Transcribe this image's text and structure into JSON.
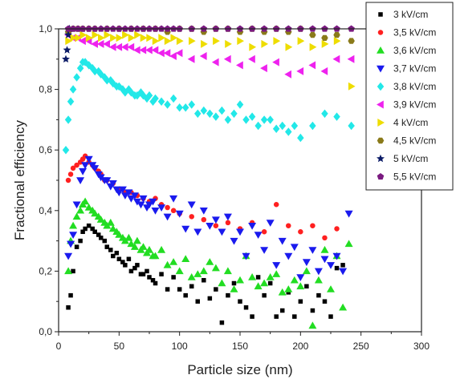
{
  "chart_data": {
    "type": "scatter",
    "xlabel": "Particle size (nm)",
    "ylabel": "Fractional efficiency",
    "xlim": [
      0,
      300
    ],
    "ylim": [
      0,
      1.0
    ],
    "xticks": [
      "0",
      "50",
      "100",
      "150",
      "200",
      "250",
      "300"
    ],
    "yticks": [
      "0,0",
      "0,2",
      "0,4",
      "0,6",
      "0,8",
      "1,0"
    ],
    "grid": false,
    "legend_position": "top-right",
    "series": [
      {
        "name": "3 kV/cm",
        "color": "#000000",
        "marker": "square",
        "x": [
          8,
          10,
          12,
          15,
          18,
          20,
          22,
          25,
          28,
          30,
          33,
          35,
          38,
          40,
          43,
          45,
          48,
          50,
          53,
          55,
          58,
          60,
          63,
          65,
          68,
          70,
          73,
          75,
          78,
          80,
          85,
          90,
          95,
          100,
          105,
          110,
          115,
          120,
          125,
          130,
          135,
          140,
          145,
          150,
          155,
          160,
          165,
          170,
          175,
          180,
          185,
          190,
          195,
          200,
          205,
          210,
          215,
          220,
          225,
          230,
          235
        ],
        "y": [
          0.08,
          0.12,
          0.2,
          0.28,
          0.3,
          0.33,
          0.34,
          0.35,
          0.34,
          0.33,
          0.32,
          0.31,
          0.3,
          0.28,
          0.27,
          0.25,
          0.26,
          0.24,
          0.23,
          0.22,
          0.24,
          0.2,
          0.21,
          0.22,
          0.19,
          0.19,
          0.2,
          0.18,
          0.17,
          0.16,
          0.19,
          0.14,
          0.18,
          0.14,
          0.12,
          0.15,
          0.1,
          0.17,
          0.11,
          0.14,
          0.03,
          0.12,
          0.16,
          0.1,
          0.08,
          0.05,
          0.18,
          0.12,
          0.16,
          0.05,
          0.07,
          0.13,
          0.05,
          0.1,
          0.15,
          0.07,
          0.12,
          0.1,
          0.05,
          0.21,
          0.22
        ]
      },
      {
        "name": "3,5 kV/cm",
        "color": "#ff2020",
        "marker": "circle",
        "x": [
          8,
          10,
          12,
          15,
          18,
          20,
          22,
          25,
          28,
          30,
          33,
          35,
          38,
          40,
          45,
          50,
          55,
          60,
          65,
          70,
          75,
          80,
          85,
          90,
          95,
          100,
          110,
          120,
          130,
          140,
          150,
          160,
          170,
          180,
          190,
          200,
          210,
          220,
          230
        ],
        "y": [
          0.5,
          0.52,
          0.54,
          0.55,
          0.56,
          0.57,
          0.58,
          0.56,
          0.55,
          0.54,
          0.53,
          0.52,
          0.5,
          0.5,
          0.49,
          0.47,
          0.46,
          0.46,
          0.45,
          0.44,
          0.43,
          0.44,
          0.42,
          0.41,
          0.4,
          0.39,
          0.38,
          0.37,
          0.35,
          0.36,
          0.34,
          0.36,
          0.33,
          0.42,
          0.35,
          0.33,
          0.35,
          0.31,
          0.34
        ]
      },
      {
        "name": "3,6 kV/cm",
        "color": "#22dd22",
        "marker": "triangle-up",
        "x": [
          8,
          10,
          12,
          15,
          18,
          20,
          22,
          25,
          28,
          30,
          33,
          35,
          38,
          40,
          43,
          45,
          48,
          50,
          53,
          55,
          58,
          60,
          63,
          65,
          68,
          70,
          73,
          75,
          78,
          80,
          85,
          90,
          95,
          100,
          105,
          110,
          115,
          120,
          125,
          130,
          135,
          140,
          145,
          150,
          155,
          160,
          165,
          170,
          175,
          180,
          185,
          190,
          195,
          200,
          205,
          210,
          215,
          220,
          225,
          230,
          235,
          240
        ],
        "y": [
          0.2,
          0.3,
          0.35,
          0.38,
          0.4,
          0.42,
          0.43,
          0.41,
          0.4,
          0.39,
          0.38,
          0.37,
          0.36,
          0.35,
          0.36,
          0.34,
          0.33,
          0.32,
          0.31,
          0.3,
          0.31,
          0.29,
          0.28,
          0.3,
          0.27,
          0.28,
          0.26,
          0.27,
          0.25,
          0.25,
          0.27,
          0.22,
          0.23,
          0.2,
          0.24,
          0.18,
          0.19,
          0.2,
          0.23,
          0.21,
          0.16,
          0.2,
          0.14,
          0.17,
          0.25,
          0.18,
          0.15,
          0.16,
          0.18,
          0.19,
          0.13,
          0.14,
          0.17,
          0.15,
          0.2,
          0.02,
          0.17,
          0.27,
          0.14,
          0.25,
          0.08,
          0.29
        ]
      },
      {
        "name": "3,7 kV/cm",
        "color": "#1a1aee",
        "marker": "triangle-down",
        "x": [
          8,
          10,
          12,
          15,
          18,
          20,
          22,
          25,
          28,
          30,
          33,
          35,
          38,
          40,
          43,
          45,
          48,
          50,
          53,
          55,
          58,
          60,
          63,
          65,
          68,
          70,
          73,
          75,
          78,
          80,
          85,
          90,
          95,
          100,
          105,
          110,
          115,
          120,
          125,
          130,
          135,
          140,
          145,
          150,
          155,
          160,
          165,
          170,
          175,
          180,
          185,
          190,
          195,
          200,
          205,
          210,
          215,
          220,
          225,
          230,
          235,
          240
        ],
        "y": [
          0.25,
          0.29,
          0.32,
          0.42,
          0.5,
          0.53,
          0.55,
          0.57,
          0.55,
          0.54,
          0.52,
          0.51,
          0.5,
          0.5,
          0.48,
          0.49,
          0.47,
          0.46,
          0.47,
          0.45,
          0.46,
          0.44,
          0.45,
          0.43,
          0.42,
          0.44,
          0.41,
          0.42,
          0.43,
          0.4,
          0.41,
          0.38,
          0.44,
          0.39,
          0.34,
          0.42,
          0.33,
          0.4,
          0.35,
          0.37,
          0.33,
          0.38,
          0.3,
          0.33,
          0.25,
          0.35,
          0.32,
          0.27,
          0.36,
          0.22,
          0.3,
          0.25,
          0.28,
          0.18,
          0.23,
          0.27,
          0.2,
          0.24,
          0.22,
          0.25,
          0.2,
          0.39
        ]
      },
      {
        "name": "3,8 kV/cm",
        "color": "#22e8e8",
        "marker": "diamond",
        "x": [
          6,
          8,
          10,
          12,
          15,
          18,
          20,
          22,
          25,
          28,
          30,
          33,
          35,
          38,
          40,
          43,
          45,
          48,
          50,
          53,
          55,
          58,
          60,
          63,
          65,
          68,
          70,
          73,
          75,
          78,
          80,
          85,
          90,
          95,
          100,
          105,
          110,
          115,
          120,
          125,
          130,
          135,
          140,
          145,
          150,
          155,
          160,
          165,
          170,
          175,
          180,
          185,
          190,
          195,
          200,
          210,
          220,
          230,
          242
        ],
        "y": [
          0.6,
          0.7,
          0.76,
          0.8,
          0.84,
          0.87,
          0.89,
          0.89,
          0.88,
          0.87,
          0.86,
          0.86,
          0.85,
          0.84,
          0.83,
          0.83,
          0.82,
          0.81,
          0.81,
          0.8,
          0.79,
          0.8,
          0.79,
          0.78,
          0.78,
          0.79,
          0.78,
          0.77,
          0.78,
          0.76,
          0.77,
          0.76,
          0.75,
          0.77,
          0.74,
          0.74,
          0.75,
          0.72,
          0.73,
          0.72,
          0.71,
          0.73,
          0.7,
          0.72,
          0.75,
          0.7,
          0.71,
          0.68,
          0.7,
          0.7,
          0.67,
          0.68,
          0.66,
          0.68,
          0.64,
          0.68,
          0.72,
          0.71,
          0.68
        ]
      },
      {
        "name": "3,9 kV/cm",
        "color": "#ee22ee",
        "marker": "triangle-left",
        "x": [
          8,
          12,
          16,
          20,
          25,
          30,
          35,
          40,
          45,
          50,
          55,
          60,
          65,
          70,
          75,
          80,
          85,
          90,
          95,
          100,
          110,
          120,
          130,
          140,
          150,
          160,
          170,
          180,
          190,
          200,
          210,
          220,
          230,
          242
        ],
        "y": [
          0.98,
          0.97,
          0.97,
          0.96,
          0.96,
          0.95,
          0.95,
          0.95,
          0.94,
          0.94,
          0.94,
          0.94,
          0.93,
          0.93,
          0.93,
          0.93,
          0.92,
          0.92,
          0.91,
          0.92,
          0.9,
          0.91,
          0.89,
          0.9,
          0.88,
          0.9,
          0.87,
          0.89,
          0.85,
          0.86,
          0.88,
          0.86,
          0.9,
          0.9
        ]
      },
      {
        "name": "4 kV/cm",
        "color": "#eedd00",
        "marker": "triangle-right",
        "x": [
          8,
          12,
          16,
          20,
          25,
          30,
          35,
          40,
          45,
          50,
          55,
          60,
          65,
          70,
          75,
          80,
          85,
          90,
          95,
          100,
          110,
          120,
          130,
          140,
          150,
          160,
          170,
          180,
          190,
          200,
          210,
          220,
          230,
          242
        ],
        "y": [
          0.96,
          0.97,
          0.97,
          0.98,
          0.97,
          0.98,
          0.97,
          0.98,
          0.97,
          0.97,
          0.98,
          0.97,
          0.98,
          0.97,
          0.97,
          0.96,
          0.97,
          0.96,
          0.97,
          0.96,
          0.96,
          0.95,
          0.96,
          0.95,
          0.96,
          0.94,
          0.95,
          0.96,
          0.94,
          0.96,
          0.94,
          0.95,
          0.96,
          0.81
        ]
      },
      {
        "name": "4,5 kV/cm",
        "color": "#8a7a1a",
        "marker": "hexagon",
        "x": [
          8,
          12,
          16,
          20,
          25,
          30,
          40,
          50,
          60,
          70,
          80,
          90,
          100,
          110,
          120,
          130,
          140,
          150,
          160,
          170,
          180,
          190,
          200,
          210,
          220,
          230,
          242
        ],
        "y": [
          0.99,
          1.0,
          1.0,
          1.0,
          1.0,
          1.0,
          1.0,
          1.0,
          1.0,
          1.0,
          1.0,
          0.99,
          1.0,
          1.0,
          0.99,
          1.0,
          1.0,
          0.99,
          1.0,
          0.99,
          1.0,
          0.99,
          1.0,
          0.98,
          0.97,
          0.98,
          0.96
        ]
      },
      {
        "name": "5 kV/cm",
        "color": "#0a1a66",
        "marker": "star",
        "x": [
          6,
          7,
          8,
          9
        ],
        "y": [
          0.9,
          0.93,
          0.98,
          1.0
        ]
      },
      {
        "name": "5,5 kV/cm",
        "color": "#7a1a80",
        "marker": "pentagon",
        "x": [
          8,
          12,
          16,
          20,
          25,
          30,
          35,
          40,
          45,
          50,
          55,
          60,
          65,
          70,
          75,
          80,
          85,
          90,
          95,
          100,
          110,
          120,
          130,
          140,
          150,
          160,
          170,
          180,
          190,
          200,
          210,
          220,
          230,
          242
        ],
        "y": [
          1.0,
          1.0,
          1.0,
          1.0,
          1.0,
          1.0,
          1.0,
          1.0,
          1.0,
          1.0,
          1.0,
          1.0,
          1.0,
          1.0,
          1.0,
          1.0,
          1.0,
          1.0,
          1.0,
          1.0,
          1.0,
          1.0,
          1.0,
          1.0,
          1.0,
          1.0,
          1.0,
          1.0,
          1.0,
          1.0,
          1.0,
          1.0,
          1.0,
          1.0
        ]
      }
    ]
  }
}
